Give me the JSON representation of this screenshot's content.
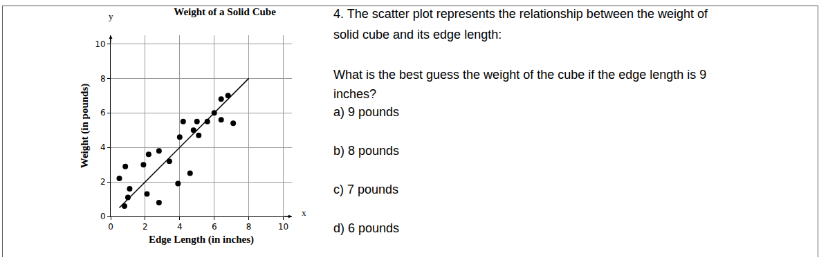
{
  "chart_data": {
    "type": "scatter",
    "title": "Weight of a Solid Cube",
    "x_label": "Edge Length (in inches)",
    "y_label": "Weight (in pounds)",
    "axis_symbols": {
      "x": "x",
      "y": "y"
    },
    "xlim": [
      0,
      10.5
    ],
    "ylim": [
      0,
      10.5
    ],
    "xticks": [
      0,
      2,
      4,
      6,
      8,
      10
    ],
    "yticks": [
      0,
      2,
      4,
      6,
      8,
      10
    ],
    "grid": true,
    "series": [
      {
        "type": "scatter",
        "marker": "circle",
        "color": "#000000",
        "x": [
          0.5,
          0.85,
          1.1,
          1.0,
          0.8,
          1.9,
          2.2,
          2.8,
          2.1,
          2.8,
          3.4,
          3.9,
          4.6,
          4.0,
          4.2,
          4.8,
          5.0,
          5.1,
          5.6,
          6.0,
          6.4,
          6.4,
          6.8,
          7.1
        ],
        "values": [
          2.2,
          2.9,
          1.6,
          1.1,
          0.6,
          3.0,
          3.6,
          3.8,
          1.3,
          0.8,
          3.2,
          1.9,
          2.5,
          4.6,
          5.5,
          5.0,
          5.5,
          4.7,
          5.5,
          6.0,
          5.6,
          6.8,
          7.0,
          5.4
        ]
      },
      {
        "type": "line",
        "line_style": "solid",
        "color": "#000000",
        "x": [
          0.5,
          8
        ],
        "values": [
          0.5,
          8
        ]
      }
    ]
  },
  "question": {
    "lines": [
      "4.  The scatter plot represents the relationship between the weight of",
      "solid cube and its edge length:",
      "What is the best guess the weight of the cube if the edge length is 9",
      "inches?"
    ],
    "options": [
      "a)  9 pounds",
      "b)  8 pounds",
      "c)  7 pounds",
      "d)  6 pounds"
    ]
  }
}
